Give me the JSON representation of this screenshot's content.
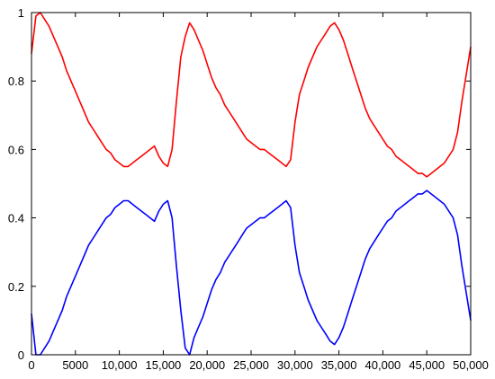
{
  "chart_data": {
    "type": "line",
    "title": "",
    "xlabel": "",
    "ylabel": "",
    "xlim": [
      0,
      50000
    ],
    "ylim": [
      0,
      1
    ],
    "grid": false,
    "x_ticks": [
      0,
      5000,
      10000,
      15000,
      20000,
      25000,
      30000,
      35000,
      40000,
      45000,
      50000
    ],
    "x_tick_labels": [
      "0",
      "5000",
      "10,000",
      "15,000",
      "20,000",
      "25,000",
      "30,000",
      "35,000",
      "40,000",
      "45,000",
      "50,000"
    ],
    "y_ticks": [
      0,
      0.2,
      0.4,
      0.6,
      0.8,
      1
    ],
    "y_tick_labels": [
      "0",
      "0.2",
      "0.4",
      "0.6",
      "0.8",
      "1"
    ],
    "series": [
      {
        "color": "#ff0000",
        "x": [
          0,
          500,
          1000,
          1500,
          2000,
          2500,
          3000,
          3500,
          4000,
          4500,
          5000,
          5500,
          6000,
          6500,
          7000,
          7500,
          8000,
          8500,
          9000,
          9500,
          10000,
          10500,
          11000,
          11500,
          12000,
          12500,
          13000,
          13500,
          14000,
          14500,
          15000,
          15500,
          16000,
          16500,
          17000,
          17500,
          18000,
          18500,
          19000,
          19500,
          20000,
          20500,
          21000,
          21500,
          22000,
          22500,
          23000,
          23500,
          24000,
          24500,
          25000,
          25500,
          26000,
          26500,
          27000,
          27500,
          28000,
          28500,
          29000,
          29500,
          30000,
          30500,
          31000,
          31500,
          32000,
          32500,
          33000,
          33500,
          34000,
          34500,
          35000,
          35500,
          36000,
          36500,
          37000,
          37500,
          38000,
          38500,
          39000,
          39500,
          40000,
          40500,
          41000,
          41500,
          42000,
          42500,
          43000,
          43500,
          44000,
          44500,
          45000,
          45500,
          46000,
          46500,
          47000,
          47500,
          48000,
          48500,
          49000,
          49500,
          50000
        ],
        "y": [
          0.88,
          0.99,
          1.0,
          0.98,
          0.96,
          0.93,
          0.9,
          0.87,
          0.83,
          0.8,
          0.77,
          0.74,
          0.71,
          0.68,
          0.66,
          0.64,
          0.62,
          0.6,
          0.59,
          0.57,
          0.56,
          0.55,
          0.55,
          0.56,
          0.57,
          0.58,
          0.59,
          0.6,
          0.61,
          0.58,
          0.56,
          0.55,
          0.6,
          0.74,
          0.87,
          0.93,
          0.97,
          0.95,
          0.92,
          0.89,
          0.85,
          0.81,
          0.78,
          0.76,
          0.73,
          0.71,
          0.69,
          0.67,
          0.65,
          0.63,
          0.62,
          0.61,
          0.6,
          0.6,
          0.59,
          0.58,
          0.57,
          0.56,
          0.55,
          0.57,
          0.68,
          0.76,
          0.8,
          0.84,
          0.87,
          0.9,
          0.92,
          0.94,
          0.96,
          0.97,
          0.95,
          0.92,
          0.88,
          0.84,
          0.8,
          0.76,
          0.72,
          0.69,
          0.67,
          0.65,
          0.63,
          0.61,
          0.6,
          0.58,
          0.57,
          0.56,
          0.55,
          0.54,
          0.53,
          0.53,
          0.52,
          0.53,
          0.54,
          0.55,
          0.56,
          0.58,
          0.6,
          0.65,
          0.74,
          0.82,
          0.9
        ]
      },
      {
        "color": "#0000ff",
        "x": [
          0,
          500,
          1000,
          1500,
          2000,
          2500,
          3000,
          3500,
          4000,
          4500,
          5000,
          5500,
          6000,
          6500,
          7000,
          7500,
          8000,
          8500,
          9000,
          9500,
          10000,
          10500,
          11000,
          11500,
          12000,
          12500,
          13000,
          13500,
          14000,
          14500,
          15000,
          15500,
          16000,
          16500,
          17000,
          17500,
          18000,
          18500,
          19000,
          19500,
          20000,
          20500,
          21000,
          21500,
          22000,
          22500,
          23000,
          23500,
          24000,
          24500,
          25000,
          25500,
          26000,
          26500,
          27000,
          27500,
          28000,
          28500,
          29000,
          29500,
          30000,
          30500,
          31000,
          31500,
          32000,
          32500,
          33000,
          33500,
          34000,
          34500,
          35000,
          35500,
          36000,
          36500,
          37000,
          37500,
          38000,
          38500,
          39000,
          39500,
          40000,
          40500,
          41000,
          41500,
          42000,
          42500,
          43000,
          43500,
          44000,
          44500,
          45000,
          45500,
          46000,
          46500,
          47000,
          47500,
          48000,
          48500,
          49000,
          49500,
          50000
        ],
        "y": [
          0.12,
          0.0,
          0.0,
          0.02,
          0.04,
          0.07,
          0.1,
          0.13,
          0.17,
          0.2,
          0.23,
          0.26,
          0.29,
          0.32,
          0.34,
          0.36,
          0.38,
          0.4,
          0.41,
          0.43,
          0.44,
          0.45,
          0.45,
          0.44,
          0.43,
          0.42,
          0.41,
          0.4,
          0.39,
          0.42,
          0.44,
          0.45,
          0.4,
          0.26,
          0.13,
          0.02,
          0.0,
          0.05,
          0.08,
          0.11,
          0.15,
          0.19,
          0.22,
          0.24,
          0.27,
          0.29,
          0.31,
          0.33,
          0.35,
          0.37,
          0.38,
          0.39,
          0.4,
          0.4,
          0.41,
          0.42,
          0.43,
          0.44,
          0.45,
          0.43,
          0.32,
          0.24,
          0.2,
          0.16,
          0.13,
          0.1,
          0.08,
          0.06,
          0.04,
          0.03,
          0.05,
          0.08,
          0.12,
          0.16,
          0.2,
          0.24,
          0.28,
          0.31,
          0.33,
          0.35,
          0.37,
          0.39,
          0.4,
          0.42,
          0.43,
          0.44,
          0.45,
          0.46,
          0.47,
          0.47,
          0.48,
          0.47,
          0.46,
          0.45,
          0.44,
          0.42,
          0.4,
          0.35,
          0.26,
          0.18,
          0.1
        ]
      }
    ]
  }
}
